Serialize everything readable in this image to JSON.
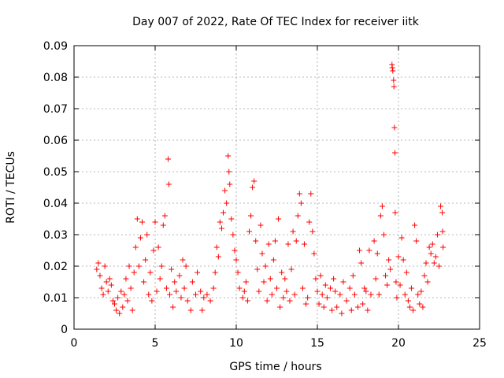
{
  "chart_data": {
    "type": "scatter",
    "title": "Day 007 of 2022, Rate Of TEC Index for receiver iitk",
    "xlabel": "GPS time / hours",
    "ylabel": "ROTI / TECUs",
    "xlim": [
      0,
      25
    ],
    "ylim": [
      0,
      0.09
    ],
    "x_ticks": [
      {
        "value": 0,
        "label": "0"
      },
      {
        "value": 5,
        "label": "5"
      },
      {
        "value": 10,
        "label": "10"
      },
      {
        "value": 15,
        "label": "15"
      },
      {
        "value": 20,
        "label": "20"
      },
      {
        "value": 25,
        "label": "25"
      }
    ],
    "y_ticks": [
      {
        "value": 0,
        "label": "0"
      },
      {
        "value": 0.01,
        "label": "0.01"
      },
      {
        "value": 0.02,
        "label": "0.02"
      },
      {
        "value": 0.03,
        "label": "0.03"
      },
      {
        "value": 0.04,
        "label": "0.04"
      },
      {
        "value": 0.05,
        "label": "0.05"
      },
      {
        "value": 0.06,
        "label": "0.06"
      },
      {
        "value": 0.07,
        "label": "0.07"
      },
      {
        "value": 0.08,
        "label": "0.08"
      },
      {
        "value": 0.09,
        "label": "0.09"
      }
    ],
    "grid": true,
    "marker": "plus",
    "color": "#ff0000",
    "series": [
      {
        "points": [
          [
            1.4,
            0.019
          ],
          [
            1.5,
            0.021
          ],
          [
            1.6,
            0.017
          ],
          [
            1.7,
            0.013
          ],
          [
            1.8,
            0.011
          ],
          [
            1.9,
            0.02
          ],
          [
            2.0,
            0.015
          ],
          [
            2.1,
            0.012
          ],
          [
            2.2,
            0.016
          ],
          [
            2.3,
            0.014
          ],
          [
            2.4,
            0.009
          ],
          [
            2.5,
            0.008
          ],
          [
            2.6,
            0.006
          ],
          [
            2.7,
            0.01
          ],
          [
            2.8,
            0.005
          ],
          [
            2.9,
            0.012
          ],
          [
            3.0,
            0.007
          ],
          [
            3.1,
            0.011
          ],
          [
            3.2,
            0.016
          ],
          [
            3.3,
            0.009
          ],
          [
            3.4,
            0.02
          ],
          [
            3.5,
            0.013
          ],
          [
            3.6,
            0.006
          ],
          [
            3.7,
            0.018
          ],
          [
            3.8,
            0.026
          ],
          [
            3.9,
            0.035
          ],
          [
            4.0,
            0.02
          ],
          [
            4.1,
            0.029
          ],
          [
            4.2,
            0.034
          ],
          [
            4.3,
            0.015
          ],
          [
            4.4,
            0.022
          ],
          [
            4.5,
            0.03
          ],
          [
            4.6,
            0.011
          ],
          [
            4.7,
            0.018
          ],
          [
            4.8,
            0.009
          ],
          [
            4.9,
            0.025
          ],
          [
            5.0,
            0.034
          ],
          [
            5.1,
            0.012
          ],
          [
            5.2,
            0.026
          ],
          [
            5.3,
            0.016
          ],
          [
            5.4,
            0.02
          ],
          [
            5.5,
            0.033
          ],
          [
            5.6,
            0.036
          ],
          [
            5.7,
            0.013
          ],
          [
            5.8,
            0.054
          ],
          [
            5.85,
            0.046
          ],
          [
            5.9,
            0.011
          ],
          [
            6.0,
            0.019
          ],
          [
            6.1,
            0.007
          ],
          [
            6.2,
            0.015
          ],
          [
            6.3,
            0.012
          ],
          [
            6.5,
            0.017
          ],
          [
            6.6,
            0.01
          ],
          [
            6.7,
            0.022
          ],
          [
            6.8,
            0.013
          ],
          [
            6.9,
            0.02
          ],
          [
            7.0,
            0.009
          ],
          [
            7.2,
            0.006
          ],
          [
            7.3,
            0.015
          ],
          [
            7.5,
            0.011
          ],
          [
            7.6,
            0.018
          ],
          [
            7.8,
            0.012
          ],
          [
            7.9,
            0.006
          ],
          [
            8.0,
            0.01
          ],
          [
            8.2,
            0.011
          ],
          [
            8.4,
            0.009
          ],
          [
            8.6,
            0.013
          ],
          [
            8.7,
            0.018
          ],
          [
            8.8,
            0.026
          ],
          [
            8.9,
            0.023
          ],
          [
            9.0,
            0.034
          ],
          [
            9.1,
            0.032
          ],
          [
            9.2,
            0.037
          ],
          [
            9.3,
            0.044
          ],
          [
            9.4,
            0.04
          ],
          [
            9.5,
            0.055
          ],
          [
            9.55,
            0.05
          ],
          [
            9.6,
            0.046
          ],
          [
            9.7,
            0.035
          ],
          [
            9.8,
            0.03
          ],
          [
            9.9,
            0.025
          ],
          [
            10.0,
            0.022
          ],
          [
            10.1,
            0.018
          ],
          [
            10.2,
            0.013
          ],
          [
            10.4,
            0.01
          ],
          [
            10.5,
            0.012
          ],
          [
            10.6,
            0.015
          ],
          [
            10.7,
            0.009
          ],
          [
            10.8,
            0.031
          ],
          [
            10.9,
            0.036
          ],
          [
            11.0,
            0.045
          ],
          [
            11.1,
            0.047
          ],
          [
            11.2,
            0.028
          ],
          [
            11.3,
            0.019
          ],
          [
            11.4,
            0.012
          ],
          [
            11.5,
            0.033
          ],
          [
            11.6,
            0.024
          ],
          [
            11.7,
            0.015
          ],
          [
            11.8,
            0.02
          ],
          [
            11.9,
            0.009
          ],
          [
            12.0,
            0.027
          ],
          [
            12.1,
            0.016
          ],
          [
            12.2,
            0.011
          ],
          [
            12.3,
            0.022
          ],
          [
            12.4,
            0.028
          ],
          [
            12.5,
            0.013
          ],
          [
            12.6,
            0.035
          ],
          [
            12.7,
            0.007
          ],
          [
            12.8,
            0.018
          ],
          [
            12.9,
            0.01
          ],
          [
            13.0,
            0.016
          ],
          [
            13.1,
            0.012
          ],
          [
            13.2,
            0.027
          ],
          [
            13.3,
            0.009
          ],
          [
            13.4,
            0.019
          ],
          [
            13.5,
            0.031
          ],
          [
            13.6,
            0.011
          ],
          [
            13.7,
            0.028
          ],
          [
            13.8,
            0.036
          ],
          [
            13.9,
            0.043
          ],
          [
            14.0,
            0.04
          ],
          [
            14.1,
            0.013
          ],
          [
            14.2,
            0.027
          ],
          [
            14.3,
            0.008
          ],
          [
            14.4,
            0.01
          ],
          [
            14.5,
            0.034
          ],
          [
            14.6,
            0.043
          ],
          [
            14.7,
            0.031
          ],
          [
            14.8,
            0.024
          ],
          [
            14.9,
            0.016
          ],
          [
            15.0,
            0.012
          ],
          [
            15.1,
            0.008
          ],
          [
            15.2,
            0.017
          ],
          [
            15.3,
            0.011
          ],
          [
            15.4,
            0.007
          ],
          [
            15.5,
            0.014
          ],
          [
            15.6,
            0.01
          ],
          [
            15.8,
            0.013
          ],
          [
            15.9,
            0.006
          ],
          [
            16.0,
            0.016
          ],
          [
            16.1,
            0.012
          ],
          [
            16.2,
            0.007
          ],
          [
            16.4,
            0.011
          ],
          [
            16.5,
            0.005
          ],
          [
            16.6,
            0.015
          ],
          [
            16.8,
            0.009
          ],
          [
            17.0,
            0.013
          ],
          [
            17.1,
            0.006
          ],
          [
            17.2,
            0.017
          ],
          [
            17.3,
            0.011
          ],
          [
            17.5,
            0.007
          ],
          [
            17.6,
            0.025
          ],
          [
            17.7,
            0.021
          ],
          [
            17.8,
            0.008
          ],
          [
            17.9,
            0.013
          ],
          [
            18.0,
            0.012
          ],
          [
            18.1,
            0.006
          ],
          [
            18.2,
            0.025
          ],
          [
            18.3,
            0.011
          ],
          [
            18.5,
            0.028
          ],
          [
            18.6,
            0.016
          ],
          [
            18.7,
            0.024
          ],
          [
            18.8,
            0.011
          ],
          [
            18.9,
            0.036
          ],
          [
            19.0,
            0.039
          ],
          [
            19.1,
            0.03
          ],
          [
            19.2,
            0.017
          ],
          [
            19.3,
            0.014
          ],
          [
            19.4,
            0.022
          ],
          [
            19.5,
            0.019
          ],
          [
            19.6,
            0.084
          ],
          [
            19.62,
            0.083
          ],
          [
            19.65,
            0.082
          ],
          [
            19.7,
            0.079
          ],
          [
            19.72,
            0.077
          ],
          [
            19.75,
            0.064
          ],
          [
            19.78,
            0.056
          ],
          [
            19.8,
            0.037
          ],
          [
            19.85,
            0.015
          ],
          [
            19.9,
            0.01
          ],
          [
            20.0,
            0.023
          ],
          [
            20.1,
            0.014
          ],
          [
            20.2,
            0.029
          ],
          [
            20.3,
            0.022
          ],
          [
            20.4,
            0.011
          ],
          [
            20.5,
            0.018
          ],
          [
            20.6,
            0.009
          ],
          [
            20.7,
            0.007
          ],
          [
            20.8,
            0.013
          ],
          [
            20.9,
            0.006
          ],
          [
            21.0,
            0.033
          ],
          [
            21.1,
            0.028
          ],
          [
            21.2,
            0.011
          ],
          [
            21.3,
            0.008
          ],
          [
            21.4,
            0.012
          ],
          [
            21.5,
            0.007
          ],
          [
            21.6,
            0.017
          ],
          [
            21.7,
            0.021
          ],
          [
            21.8,
            0.015
          ],
          [
            21.9,
            0.026
          ],
          [
            22.0,
            0.024
          ],
          [
            22.1,
            0.027
          ],
          [
            22.2,
            0.021
          ],
          [
            22.3,
            0.023
          ],
          [
            22.4,
            0.03
          ],
          [
            22.5,
            0.02
          ],
          [
            22.6,
            0.039
          ],
          [
            22.7,
            0.037
          ],
          [
            22.72,
            0.031
          ],
          [
            22.75,
            0.026
          ]
        ]
      }
    ]
  }
}
